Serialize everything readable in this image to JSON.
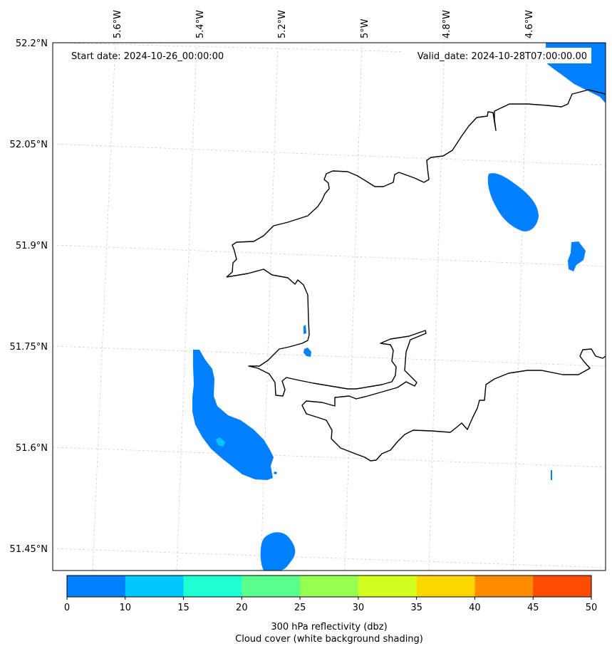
{
  "map": {
    "start_date": "Start date: 2024-10-26_00:00:00",
    "valid_date": "Valid_date: 2024-10-28T07:00:00.00",
    "lon_labels": [
      "5.6°W",
      "5.4°W",
      "5.2°W",
      "5°W",
      "4.8°W",
      "4.6°W"
    ],
    "lat_labels": [
      "52.2°N",
      "52.05°N",
      "51.9°N",
      "51.75°N",
      "51.6°N",
      "51.45°N"
    ],
    "gridlines": true
  },
  "colorbar": {
    "ticks": [
      "0",
      "10",
      "15",
      "20",
      "25",
      "30",
      "35",
      "40",
      "45",
      "50"
    ],
    "colors": [
      "#0080ff",
      "#00c8ff",
      "#1effd2",
      "#5aff8c",
      "#96ff50",
      "#d2ff1e",
      "#ffd700",
      "#ff8c00",
      "#ff4b00"
    ],
    "label_line1": "300 hPa reflectivity (dbz)",
    "label_line2": "Cloud cover (white background shading)"
  },
  "colors": {
    "reflectivity_low": "#0080ff",
    "reflectivity_mid": "#00c8ff",
    "coastline": "#000000"
  }
}
